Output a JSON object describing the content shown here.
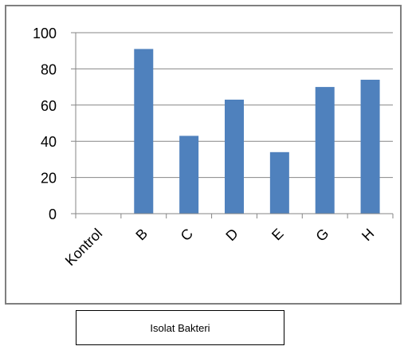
{
  "chart_data": {
    "type": "bar",
    "categories": [
      "Kontrol",
      "B",
      "C",
      "D",
      "E",
      "G",
      "H"
    ],
    "values": [
      0,
      91,
      43,
      63,
      34,
      70,
      74
    ],
    "title": "",
    "xlabel": "Isolat Bakteri",
    "ylabel": "",
    "ylim": [
      0,
      100
    ],
    "yticks": [
      0,
      20,
      40,
      60,
      80,
      100
    ],
    "grid": true,
    "legend": "none",
    "bar_color": "#4f81bd",
    "grid_color": "#868686",
    "axis_color": "#868686"
  }
}
